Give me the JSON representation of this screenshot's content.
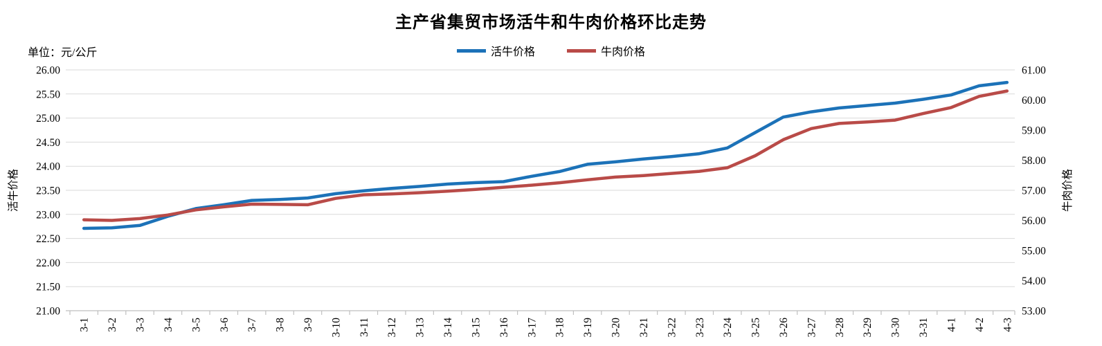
{
  "title": "主产省集贸市场活牛和牛肉价格环比走势",
  "unit_label": "单位：元/公斤",
  "legend": {
    "items": [
      {
        "label": "活牛价格",
        "color": "#1C72B8"
      },
      {
        "label": "牛肉价格",
        "color": "#B94B48"
      }
    ]
  },
  "left_axis": {
    "title": "活牛价格",
    "ticks": [
      "26.00",
      "25.50",
      "25.00",
      "24.50",
      "24.00",
      "23.50",
      "23.00",
      "22.50",
      "22.00",
      "21.50",
      "21.00"
    ]
  },
  "right_axis": {
    "title": "牛肉价格",
    "ticks": [
      "61.00",
      "60.00",
      "59.00",
      "58.00",
      "57.00",
      "56.00",
      "55.00",
      "54.00",
      "53.00"
    ]
  },
  "colors": {
    "live_cattle": "#1C72B8",
    "beef": "#B94B48",
    "gridline": "#D9D9D9",
    "axis": "#BFBFBF"
  },
  "chart_data": {
    "type": "line",
    "title": "主产省集贸市场活牛和牛肉价格环比走势",
    "unit": "元/公斤",
    "grid": true,
    "legend_position": "top",
    "left_ylim": [
      21,
      26
    ],
    "right_ylim": [
      53,
      61
    ],
    "categories": [
      "3-1",
      "3-2",
      "3-3",
      "3-4",
      "3-5",
      "3-6",
      "3-7",
      "3-8",
      "3-9",
      "3-10",
      "3-11",
      "3-12",
      "3-13",
      "3-14",
      "3-15",
      "3-16",
      "3-17",
      "3-18",
      "3-19",
      "3-20",
      "3-21",
      "3-22",
      "3-23",
      "3-24",
      "3-25",
      "3-26",
      "3-27",
      "3-28",
      "3-29",
      "3-30",
      "3-31",
      "4-1",
      "4-2",
      "4-3"
    ],
    "series": [
      {
        "name": "活牛价格",
        "yaxis": "left",
        "color": "#1C72B8",
        "values": [
          22.71,
          22.72,
          22.77,
          22.96,
          23.12,
          23.2,
          23.29,
          23.31,
          23.34,
          23.43,
          23.49,
          23.54,
          23.58,
          23.63,
          23.66,
          23.68,
          23.79,
          23.89,
          24.04,
          24.09,
          24.15,
          24.2,
          24.26,
          24.38,
          24.7,
          25.02,
          25.13,
          25.21,
          25.26,
          25.31,
          25.39,
          25.48,
          25.67,
          25.74
        ]
      },
      {
        "name": "牛肉价格",
        "yaxis": "right",
        "color": "#B94B48",
        "values": [
          56.02,
          56.0,
          56.06,
          56.18,
          56.35,
          56.45,
          56.54,
          56.53,
          56.52,
          56.73,
          56.85,
          56.88,
          56.92,
          56.97,
          57.03,
          57.1,
          57.17,
          57.25,
          57.35,
          57.44,
          57.49,
          57.56,
          57.63,
          57.75,
          58.15,
          58.68,
          59.05,
          59.22,
          59.27,
          59.33,
          59.55,
          59.75,
          60.12,
          60.3
        ]
      }
    ]
  }
}
